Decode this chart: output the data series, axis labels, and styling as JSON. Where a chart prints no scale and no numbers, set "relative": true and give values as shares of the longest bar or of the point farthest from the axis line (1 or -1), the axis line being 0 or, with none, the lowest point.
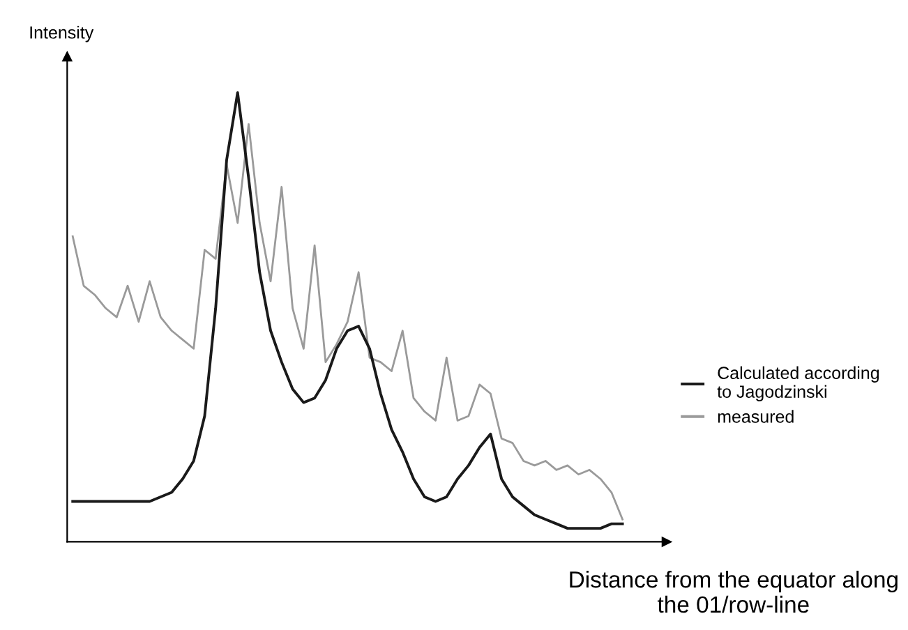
{
  "chart_data": {
    "type": "line",
    "relative": true,
    "ylabel": "Intensity",
    "xlabel": "Distance from the equator along\nthe 01/row-line",
    "legend": "right",
    "grid": false,
    "marker": "none",
    "line_style": "solid",
    "categories": [
      null,
      null,
      null,
      null,
      null,
      null,
      null,
      null,
      null,
      null,
      null,
      null,
      null,
      null,
      null,
      null,
      null,
      null,
      null,
      null,
      null,
      null,
      null,
      null,
      null,
      null,
      null,
      null,
      null,
      null,
      null,
      null,
      null,
      null,
      null,
      null,
      null,
      null,
      null,
      null,
      null,
      null,
      null,
      null,
      null,
      null,
      null,
      null,
      null,
      null,
      null
    ],
    "series": [
      {
        "name": "Calculated according\nto Jagodzinski",
        "color": "#1a1a1a",
        "values": [
          0.09,
          0.09,
          0.09,
          0.09,
          0.09,
          0.09,
          0.09,
          0.09,
          0.1,
          0.11,
          0.14,
          0.18,
          0.28,
          0.52,
          0.85,
          1.0,
          0.81,
          0.6,
          0.47,
          0.4,
          0.34,
          0.31,
          0.32,
          0.36,
          0.43,
          0.47,
          0.48,
          0.43,
          0.33,
          0.25,
          0.2,
          0.14,
          0.1,
          0.09,
          0.1,
          0.14,
          0.17,
          0.21,
          0.24,
          0.14,
          0.1,
          0.08,
          0.06,
          0.05,
          0.04,
          0.03,
          0.03,
          0.03,
          0.03,
          0.04,
          0.04
        ]
      },
      {
        "name": "measured",
        "color": "#9a9a9a",
        "values": [
          0.68,
          0.57,
          0.55,
          0.52,
          0.5,
          0.57,
          0.49,
          0.58,
          0.5,
          0.47,
          0.45,
          0.43,
          0.65,
          0.63,
          0.84,
          0.71,
          0.93,
          0.71,
          0.58,
          0.79,
          0.52,
          0.43,
          0.66,
          0.4,
          0.44,
          0.49,
          0.6,
          0.41,
          0.4,
          0.38,
          0.47,
          0.32,
          0.29,
          0.27,
          0.41,
          0.27,
          0.28,
          0.35,
          0.33,
          0.23,
          0.22,
          0.18,
          0.17,
          0.18,
          0.16,
          0.17,
          0.15,
          0.16,
          0.14,
          0.11,
          0.05
        ]
      }
    ]
  }
}
